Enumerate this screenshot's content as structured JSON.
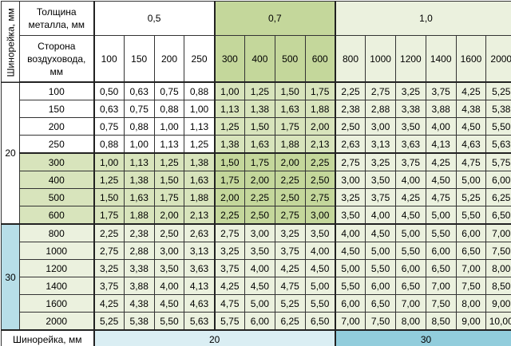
{
  "header": {
    "corner_label": "Шинорейка, мм",
    "thickness_label": "Толщина металла, мм",
    "side_label": "Сторона воздуховода, мм"
  },
  "thickness_groups": [
    {
      "label": "0,5",
      "sizes": [
        "100",
        "150",
        "200",
        "250"
      ]
    },
    {
      "label": "0,7",
      "sizes": [
        "300",
        "400",
        "500",
        "600"
      ]
    },
    {
      "label": "1,0",
      "sizes": [
        "800",
        "1000",
        "1200",
        "1400",
        "1600",
        "2000"
      ]
    }
  ],
  "row_groups": [
    {
      "label": "20",
      "rows": [
        {
          "size": "100",
          "values": [
            "0,50",
            "0,63",
            "0,75",
            "0,88",
            "1,00",
            "1,25",
            "1,50",
            "1,75",
            "2,25",
            "2,75",
            "3,25",
            "3,75",
            "4,25",
            "5,25"
          ]
        },
        {
          "size": "150",
          "values": [
            "0,63",
            "0,75",
            "0,88",
            "1,00",
            "1,13",
            "1,38",
            "1,63",
            "1,88",
            "2,38",
            "2,88",
            "3,38",
            "3,88",
            "4,38",
            "5,38"
          ]
        },
        {
          "size": "200",
          "values": [
            "0,75",
            "0,88",
            "1,00",
            "1,13",
            "1,25",
            "1,50",
            "1,75",
            "2,00",
            "2,50",
            "3,00",
            "3,50",
            "4,00",
            "4,50",
            "5,50"
          ]
        },
        {
          "size": "250",
          "values": [
            "0,88",
            "1,00",
            "1,13",
            "1,25",
            "1,38",
            "1,63",
            "1,88",
            "2,13",
            "2,63",
            "3,13",
            "3,63",
            "4,13",
            "4,63",
            "5,63"
          ]
        },
        {
          "size": "300",
          "values": [
            "1,00",
            "1,13",
            "1,25",
            "1,38",
            "1,50",
            "1,75",
            "2,00",
            "2,25",
            "2,75",
            "3,25",
            "3,75",
            "4,25",
            "4,75",
            "5,75"
          ]
        },
        {
          "size": "400",
          "values": [
            "1,25",
            "1,38",
            "1,50",
            "1,63",
            "1,75",
            "2,00",
            "2,25",
            "2,50",
            "3,00",
            "3,50",
            "4,00",
            "4,50",
            "5,00",
            "6,00"
          ]
        },
        {
          "size": "500",
          "values": [
            "1,50",
            "1,63",
            "1,75",
            "1,88",
            "2,00",
            "2,25",
            "2,50",
            "2,75",
            "3,25",
            "3,75",
            "4,25",
            "4,75",
            "5,25",
            "6,25"
          ]
        },
        {
          "size": "600",
          "values": [
            "1,75",
            "1,88",
            "2,00",
            "2,13",
            "2,25",
            "2,50",
            "2,75",
            "3,00",
            "3,50",
            "4,00",
            "4,50",
            "5,00",
            "5,50",
            "6,50"
          ]
        }
      ]
    },
    {
      "label": "30",
      "rows": [
        {
          "size": "800",
          "values": [
            "2,25",
            "2,38",
            "2,50",
            "2,63",
            "2,75",
            "3,00",
            "3,25",
            "3,50",
            "4,00",
            "4,50",
            "5,00",
            "5,50",
            "6,00",
            "7,00"
          ]
        },
        {
          "size": "1000",
          "values": [
            "2,75",
            "2,88",
            "3,00",
            "3,13",
            "3,25",
            "3,50",
            "3,75",
            "4,00",
            "4,50",
            "5,00",
            "5,50",
            "6,00",
            "6,50",
            "7,50"
          ]
        },
        {
          "size": "1200",
          "values": [
            "3,25",
            "3,38",
            "3,50",
            "3,63",
            "3,75",
            "4,00",
            "4,25",
            "4,50",
            "5,00",
            "5,50",
            "6,00",
            "6,50",
            "7,00",
            "8,00"
          ]
        },
        {
          "size": "1400",
          "values": [
            "3,75",
            "3,88",
            "4,00",
            "4,13",
            "4,25",
            "4,50",
            "4,75",
            "5,00",
            "5,50",
            "6,00",
            "6,50",
            "7,00",
            "7,50",
            "8,50"
          ]
        },
        {
          "size": "1600",
          "values": [
            "4,25",
            "4,38",
            "4,50",
            "4,63",
            "4,75",
            "5,00",
            "5,25",
            "5,50",
            "6,00",
            "6,50",
            "7,00",
            "7,50",
            "8,00",
            "9,00"
          ]
        },
        {
          "size": "2000",
          "values": [
            "5,25",
            "5,38",
            "5,50",
            "5,63",
            "5,75",
            "6,00",
            "6,25",
            "6,50",
            "7,00",
            "7,50",
            "8,00",
            "8,50",
            "9,00",
            "10,00"
          ]
        }
      ]
    }
  ],
  "footer": {
    "label": "Шинорейка, мм",
    "groups": [
      "20",
      "30"
    ]
  }
}
